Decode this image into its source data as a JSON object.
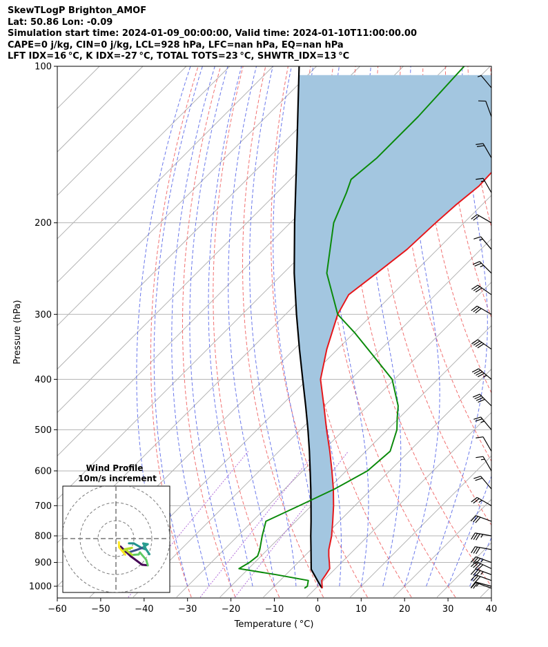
{
  "header": {
    "lines": [
      "SkewTLogP Brighton_AMOF",
      "Lat: 50.86   Lon: -0.09",
      "Simulation start time: 2024-01-09_00:00:00, Valid time: 2024-01-10T11:00:00.00",
      "CAPE=0 j/kg, CIN=0 j/kg, LCL=928 hPa, LFC=nan hPa, EQ=nan hPa",
      "LFT IDX=16 °C, K IDX=-27 °C, TOTAL TOTS=23 °C, SHWTR_IDX=13 °C"
    ]
  },
  "chart_data": {
    "type": "line",
    "title": "SkewTLogP Brighton_AMOF",
    "xlabel": "Temperature ( °C)",
    "ylabel": "Pressure (hPa)",
    "xlim": [
      -60,
      40
    ],
    "ylim": [
      1050,
      100
    ],
    "yscale": "log",
    "skew": "45 degrees",
    "x_ticks": [
      -60,
      -50,
      -40,
      -30,
      -20,
      -10,
      0,
      10,
      20,
      30,
      40
    ],
    "x_tick_labels": [
      "−60",
      "−50",
      "−40",
      "−30",
      "−20",
      "−10",
      "0",
      "10",
      "20",
      "30",
      "40"
    ],
    "y_ticks": [
      1000,
      900,
      800,
      700,
      600,
      500,
      400,
      300,
      200,
      100
    ],
    "y_tick_labels": [
      "1000",
      "900",
      "800",
      "700",
      "600",
      "500",
      "400",
      "300",
      "200",
      "100"
    ],
    "grid": true,
    "colors": {
      "temperature": "#e6161a",
      "dewpoint": "#0a8a0a",
      "parcel": "#000000",
      "shade": "#a3c6e0",
      "dry_adiabat": "#f06060",
      "moist_adiabat": "#5060e8",
      "mixing_ratio": "#b06ad8",
      "isotherm": "#b3b3b3"
    },
    "series": [
      {
        "key": "temperature",
        "pressure": [
          1009,
          1000,
          975,
          950,
          925,
          900,
          875,
          850,
          800,
          750,
          700,
          650,
          600,
          550,
          500,
          450,
          400,
          350,
          300,
          275,
          250,
          225,
          200,
          185,
          170,
          150,
          130,
          115,
          100
        ],
        "values": [
          1.5,
          1.0,
          -0.4,
          -0.8,
          -1.3,
          -2.8,
          -4.4,
          -5.9,
          -8.4,
          -11.5,
          -14.9,
          -18.8,
          -23.3,
          -28.3,
          -34.0,
          -40.1,
          -47.0,
          -52.5,
          -58.0,
          -60.0,
          -58.5,
          -57.0,
          -56.5,
          -56.0,
          -55.0,
          -55.5,
          -55.5,
          -56.0,
          -57.0
        ]
      },
      {
        "key": "dewpoint",
        "pressure": [
          1009,
          1000,
          975,
          950,
          925,
          900,
          875,
          850,
          800,
          750,
          700,
          650,
          600,
          550,
          500,
          475,
          450,
          400,
          350,
          325,
          300,
          250,
          200,
          175,
          165,
          150,
          125,
          100
        ],
        "values": [
          -2.6,
          -2.4,
          -3.5,
          -12.3,
          -22.2,
          -21.2,
          -20.8,
          -21.8,
          -24.4,
          -26.9,
          -22.8,
          -18.5,
          -15.1,
          -14.4,
          -17.8,
          -20.4,
          -23.0,
          -30.5,
          -43.0,
          -50.0,
          -58.0,
          -70.0,
          -80.0,
          -84.0,
          -86.0,
          -85.0,
          -85.0,
          -86.0
        ]
      },
      {
        "key": "parcel",
        "pressure": [
          1009,
          1000,
          975,
          950,
          928,
          900,
          850,
          800,
          750,
          700,
          650,
          600,
          550,
          500,
          450,
          400,
          350,
          300,
          250,
          200,
          150,
          100
        ],
        "values": [
          1.5,
          0.7,
          -1.4,
          -3.5,
          -5.4,
          -7.0,
          -10.0,
          -13.2,
          -16.5,
          -20.1,
          -24.0,
          -28.3,
          -33.0,
          -38.3,
          -44.3,
          -51.1,
          -58.8,
          -67.5,
          -77.5,
          -89.0,
          -103.5,
          -124.0
        ]
      }
    ],
    "wind_barbs": {
      "pressure": [
        1009,
        1000,
        975,
        950,
        925,
        900,
        850,
        800,
        750,
        700,
        650,
        600,
        550,
        500,
        450,
        400,
        350,
        300,
        275,
        250,
        225,
        200,
        175,
        150,
        125,
        110
      ],
      "speed_kt": [
        15,
        20,
        30,
        35,
        40,
        35,
        30,
        35,
        30,
        25,
        20,
        15,
        10,
        25,
        40,
        45,
        40,
        30,
        30,
        25,
        15,
        20,
        15,
        20,
        10,
        5
      ],
      "direction_deg": [
        290,
        285,
        290,
        290,
        295,
        290,
        280,
        280,
        290,
        300,
        320,
        330,
        330,
        320,
        315,
        310,
        305,
        300,
        305,
        315,
        320,
        300,
        330,
        330,
        340,
        320
      ]
    },
    "hodograph": {
      "title": "Wind Profile",
      "subtitle": "10m/s increment",
      "rings_ms": [
        10,
        20,
        30
      ]
    }
  }
}
